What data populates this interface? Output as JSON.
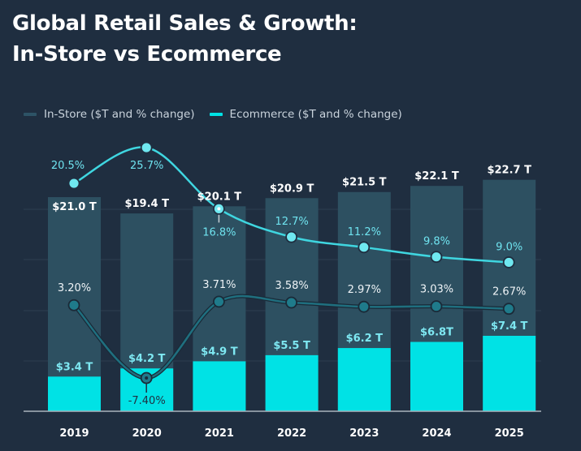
{
  "title": {
    "line1": "Global Retail Sales & Growth:",
    "line2": "In-Store vs Ecommerce"
  },
  "legend": [
    {
      "label": "In-Store ($T and % change)",
      "color": "#2d5366"
    },
    {
      "label": "Ecommerce ($T and % change)",
      "color": "#00e2e5"
    }
  ],
  "colors": {
    "background": "#1f2e40",
    "instore_bar": "#2d5061",
    "ecommerce_bar": "#00e2e5",
    "ecommerce_line": "#3fd6e0",
    "ecommerce_dot": "#6fe8f0",
    "instore_line": "#1f6f7f",
    "instore_dot": "#1f7b8b",
    "gridline": "#2a3b4e",
    "axis": "#aab4bd"
  },
  "chart_data": {
    "type": "bar",
    "title": "Global Retail Sales & Growth: In-Store vs Ecommerce",
    "xlabel": "",
    "ylabel": "",
    "categories": [
      "2019",
      "2020",
      "2021",
      "2022",
      "2023",
      "2024",
      "2025"
    ],
    "grid": true,
    "legend_position": "top-left",
    "ylim": [
      0,
      25
    ],
    "series": [
      {
        "name": "In-Store ($T and % change)",
        "kind": "bar",
        "values": [
          21.0,
          19.4,
          20.1,
          20.9,
          21.5,
          22.1,
          22.7
        ],
        "labels": [
          "$21.0 T",
          "$19.4 T",
          "$20.1 T",
          "$20.9 T",
          "$21.5 T",
          "$22.1 T",
          "$22.7 T"
        ]
      },
      {
        "name": "Ecommerce ($T and % change)",
        "kind": "bar",
        "values": [
          3.4,
          4.2,
          4.9,
          5.5,
          6.2,
          6.8,
          7.4
        ],
        "labels": [
          "$3.4 T",
          "$4.2 T",
          "$4.9 T",
          "$5.5 T",
          "$6.2 T",
          "$6.8T",
          "$7.4 T"
        ]
      },
      {
        "name": "Ecommerce % change",
        "kind": "line",
        "values": [
          20.5,
          25.7,
          16.8,
          12.7,
          11.2,
          9.8,
          9.0
        ],
        "labels": [
          "20.5%",
          "25.7%",
          "16.8%",
          "12.7%",
          "11.2%",
          "9.8%",
          "9.0%"
        ]
      },
      {
        "name": "In-Store % change",
        "kind": "line",
        "values": [
          3.2,
          -7.4,
          3.71,
          3.58,
          2.97,
          3.03,
          2.67
        ],
        "labels": [
          "3.20%",
          "-7.40%",
          "3.71%",
          "3.58%",
          "2.97%",
          "3.03%",
          "2.67%"
        ]
      }
    ]
  }
}
